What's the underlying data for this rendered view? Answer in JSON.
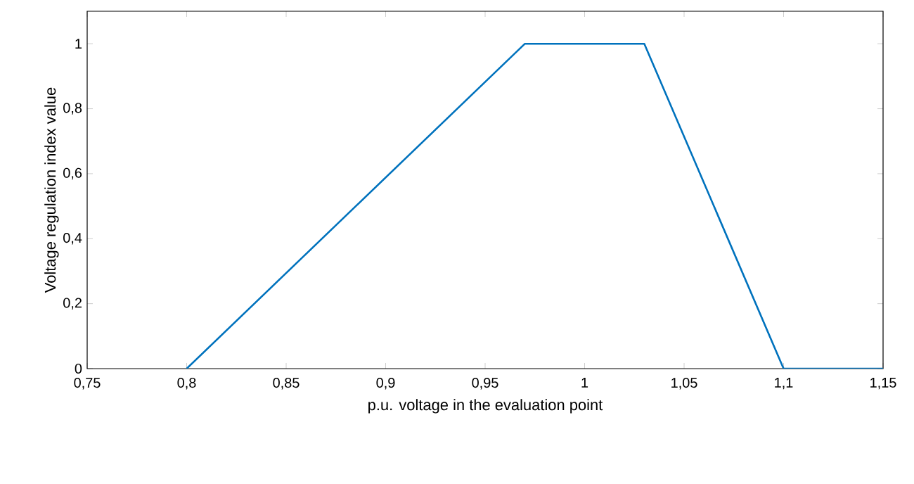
{
  "chart_data": {
    "type": "line",
    "xlabel": "p.u. voltage in the evaluation point",
    "ylabel": "Voltage regulation index value",
    "x": [
      0.8,
      0.97,
      1.03,
      1.1,
      1.15
    ],
    "series": [
      {
        "color": "#0072bd",
        "values": [
          0,
          1,
          1,
          0,
          0
        ]
      }
    ],
    "xlim": [
      0.75,
      1.15
    ],
    "ylim": [
      0,
      1.1
    ],
    "xticks": [
      {
        "value": 0.75,
        "label": "0,75"
      },
      {
        "value": 0.8,
        "label": "0,8"
      },
      {
        "value": 0.85,
        "label": "0,85"
      },
      {
        "value": 0.9,
        "label": "0,9"
      },
      {
        "value": 0.95,
        "label": "0,95"
      },
      {
        "value": 1,
        "label": "1"
      },
      {
        "value": 1.05,
        "label": "1,05"
      },
      {
        "value": 1.1,
        "label": "1,1"
      },
      {
        "value": 1.15,
        "label": "1,15"
      }
    ],
    "yticks": [
      {
        "value": 0,
        "label": "0"
      },
      {
        "value": 0.2,
        "label": "0,2"
      },
      {
        "value": 0.4,
        "label": "0,4"
      },
      {
        "value": 0.6,
        "label": "0,6"
      },
      {
        "value": 0.8,
        "label": "0,8"
      },
      {
        "value": 1,
        "label": "1"
      }
    ],
    "grid": false,
    "marker": "none",
    "line_style": "solid"
  }
}
